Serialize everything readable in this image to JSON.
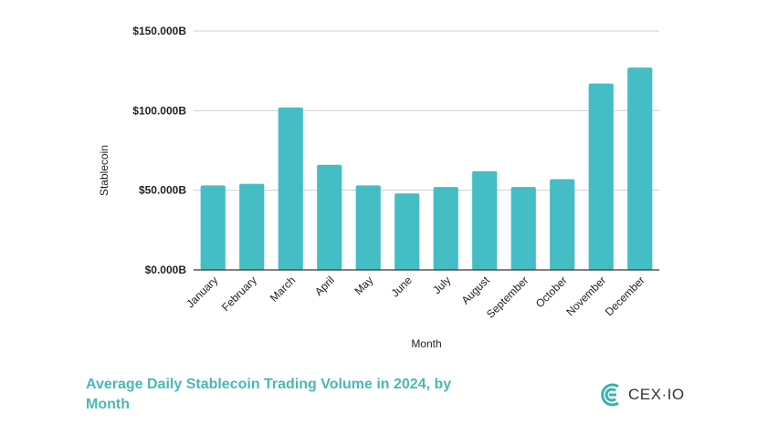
{
  "chart_data": {
    "type": "bar",
    "title": "Average Daily Stablecoin Trading Volume in 2024, by Month",
    "xlabel": "Month",
    "ylabel": "Stablecoin",
    "ylim": [
      0,
      150
    ],
    "yunit": "B",
    "yticks": [
      0,
      50,
      100,
      150
    ],
    "ytick_labels": [
      "$0.000B",
      "$50.000B",
      "$100.000B",
      "$150.000B"
    ],
    "categories": [
      "January",
      "February",
      "March",
      "April",
      "May",
      "June",
      "July",
      "August",
      "September",
      "October",
      "November",
      "December"
    ],
    "values": [
      53,
      54,
      102,
      66,
      53,
      48,
      52,
      62,
      52,
      57,
      117,
      127
    ],
    "color": "#45BDC4",
    "grid": true
  },
  "caption": {
    "text": "Average Daily Stablecoin Trading Volume in 2024, by Month",
    "color": "#4CB7B3"
  },
  "logo": {
    "text": "CEX·IO",
    "icon": "cex-io-logo-icon",
    "color": "#3BB3A8"
  }
}
